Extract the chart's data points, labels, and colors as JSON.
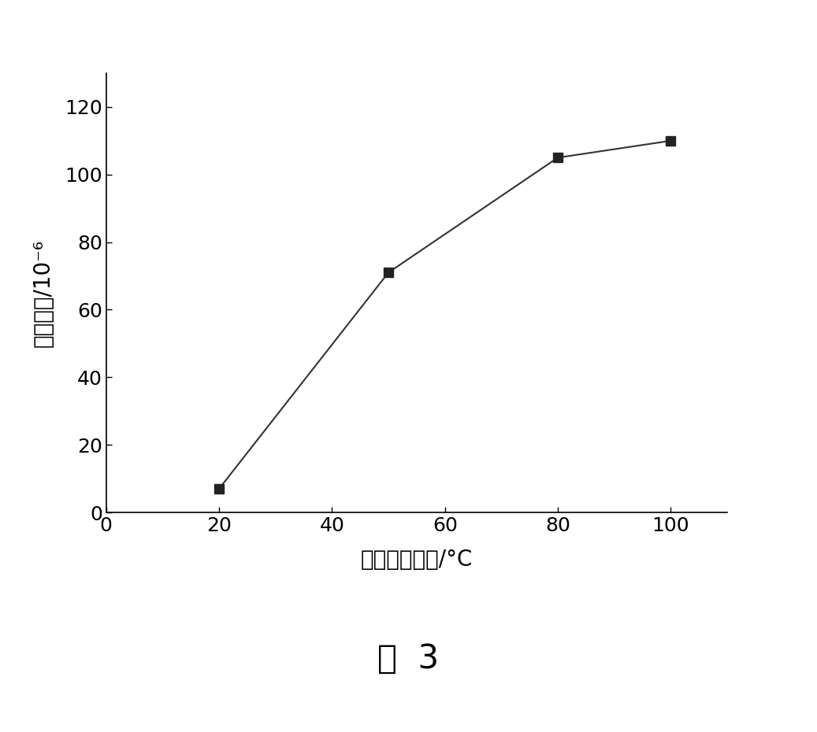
{
  "x": [
    20,
    50,
    80,
    100
  ],
  "y": [
    7,
    71,
    105,
    110
  ],
  "xlim": [
    0,
    110
  ],
  "ylim": [
    0,
    130
  ],
  "xticks": [
    0,
    20,
    40,
    60,
    80,
    100
  ],
  "yticks": [
    0,
    20,
    40,
    60,
    80,
    100,
    120
  ],
  "xlabel": "尾气加热温度/°C",
  "ylabel": "甲醉含量/10⁻⁶",
  "caption": "图  3",
  "line_color": "#333333",
  "marker": "s",
  "marker_color": "#222222",
  "marker_size": 9,
  "linewidth": 1.5,
  "xlabel_fontsize": 20,
  "ylabel_fontsize": 20,
  "tick_fontsize": 18,
  "caption_fontsize": 30,
  "background_color": "#ffffff"
}
